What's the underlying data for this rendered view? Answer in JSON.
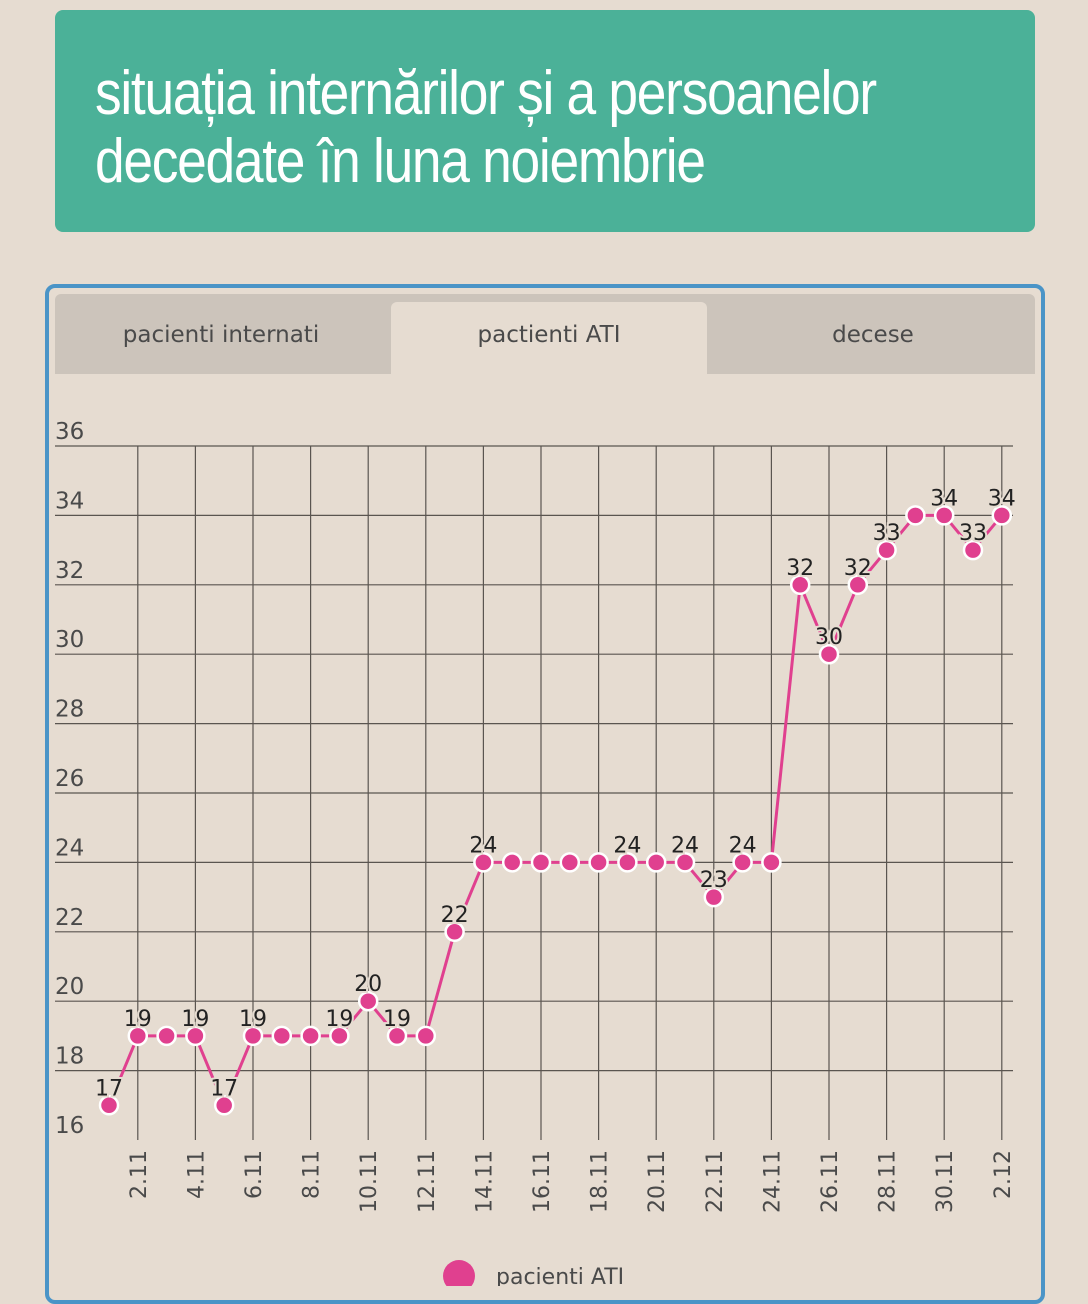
{
  "header": {
    "title_line1": "situația internărilor și a persoanelor",
    "title_line2": "decedate în luna noiembrie"
  },
  "tabs": [
    {
      "label": "pacienti internati",
      "active": false
    },
    {
      "label": "pactienti ATI",
      "active": true
    },
    {
      "label": "decese",
      "active": false
    }
  ],
  "colors": {
    "header_bg": "#4bb198",
    "panel_border": "#4a94c7",
    "series": "#e0408f",
    "grid": "#5a5550"
  },
  "chart_data": {
    "type": "line",
    "title": "",
    "xlabel": "",
    "ylabel": "",
    "ylim": [
      16,
      36
    ],
    "yticks": [
      "16",
      "18",
      "20",
      "22",
      "24",
      "26",
      "28",
      "30",
      "32",
      "34",
      "36"
    ],
    "xticks": [
      "2.11",
      "4.11",
      "6.11",
      "8.11",
      "10.11",
      "12.11",
      "14.11",
      "16.11",
      "18.11",
      "20.11",
      "22.11",
      "24.11",
      "26.11",
      "28.11",
      "30.11",
      "2.12"
    ],
    "x": [
      "1.11",
      "2.11",
      "3.11",
      "4.11",
      "5.11",
      "6.11",
      "7.11",
      "8.11",
      "9.11",
      "10.11",
      "11.11",
      "12.11",
      "13.11",
      "14.11",
      "15.11",
      "16.11",
      "17.11",
      "18.11",
      "19.11",
      "20.11",
      "21.11",
      "22.11",
      "23.11",
      "24.11",
      "25.11",
      "26.11",
      "27.11",
      "28.11",
      "29.11",
      "30.11",
      "1.12",
      "2.12"
    ],
    "series": [
      {
        "name": "pacienti ATI",
        "values": [
          17,
          19,
          19,
          19,
          17,
          19,
          19,
          19,
          19,
          20,
          19,
          19,
          22,
          24,
          24,
          24,
          24,
          24,
          24,
          24,
          24,
          23,
          24,
          24,
          32,
          30,
          32,
          33,
          34,
          34,
          33,
          34
        ],
        "data_labels": [
          "17",
          "19",
          "",
          "19",
          "17",
          "19",
          "",
          "",
          "19",
          "20",
          "19",
          "",
          "22",
          "24",
          "",
          "",
          "",
          "",
          "24",
          "",
          "24",
          "23",
          "24",
          "",
          "32",
          "30",
          "32",
          "33",
          "",
          "34",
          "33",
          "34"
        ]
      }
    ],
    "legend": {
      "position": "bottom",
      "label": "pacienti ATI"
    },
    "grid": true
  }
}
